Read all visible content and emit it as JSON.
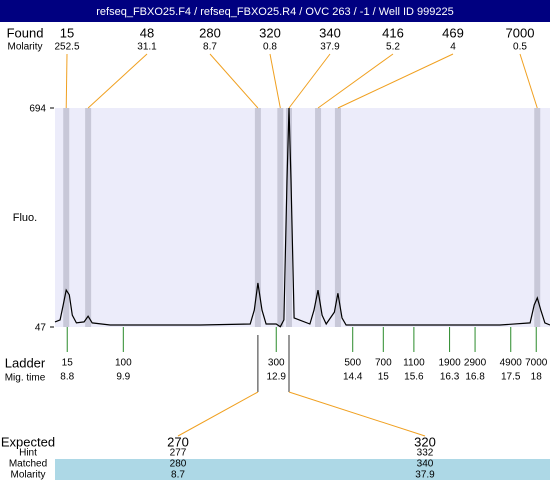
{
  "title": "refseq_FBXO25.F4 / refseq_FBXO25.R4 / OVC 263 / -1 / Well ID 999225",
  "found": {
    "label": "Found",
    "sizes": [
      15,
      48,
      280,
      320,
      340,
      416,
      469,
      7000
    ],
    "molarity_label": "Molarity",
    "molarities": [
      252.5,
      31.1,
      8.7,
      0.8,
      37.9,
      5.2,
      4,
      0.5
    ],
    "peak_times": [
      8.78,
      9.21,
      12.54,
      12.98,
      13.15,
      13.72,
      14.11,
      18.02
    ]
  },
  "chart_data": {
    "type": "line",
    "y_label": "Fluo.",
    "color": "#000000",
    "band_color": "#ececfa",
    "x": [
      8.56,
      8.66,
      8.72,
      8.78,
      8.84,
      8.9,
      8.98,
      9.13,
      9.21,
      9.29,
      9.64,
      10.43,
      11.41,
      12.39,
      12.47,
      12.54,
      12.62,
      12.7,
      12.9,
      12.98,
      13.05,
      13.11,
      13.15,
      13.19,
      13.25,
      13.56,
      13.64,
      13.72,
      13.8,
      13.88,
      14.04,
      14.11,
      14.19,
      14.27,
      15.33,
      17.29,
      17.88,
      17.96,
      18.02,
      18.09,
      18.17,
      18.27
    ],
    "values": [
      62,
      68,
      112,
      156,
      142,
      82,
      59,
      62,
      79,
      59,
      53,
      53,
      53,
      56,
      97,
      177,
      97,
      56,
      56,
      48,
      68,
      481,
      694,
      481,
      74,
      56,
      97,
      156,
      82,
      56,
      91,
      147,
      74,
      53,
      53,
      53,
      59,
      112,
      133,
      97,
      59,
      53
    ],
    "xlim": [
      8.56,
      18.27
    ],
    "ylim": [
      47,
      694
    ],
    "yticks": [
      47,
      694
    ]
  },
  "ladder": {
    "label": "Ladder",
    "sizes": [
      15,
      100,
      300,
      500,
      700,
      1100,
      1900,
      2900,
      4900,
      7000
    ],
    "time_label": "Mig. time",
    "times": [
      8.8,
      9.9,
      12.9,
      14.4,
      15,
      15.6,
      16.3,
      16.8,
      17.5,
      18
    ]
  },
  "expected": {
    "label": "Expected",
    "values": [
      270,
      320
    ],
    "hint_label": "Hint",
    "hints": [
      277,
      332
    ],
    "matched_label": "Matched",
    "matched": [
      280,
      340
    ],
    "molarity_label": "Molarity",
    "molarities": [
      8.7,
      37.9
    ]
  }
}
